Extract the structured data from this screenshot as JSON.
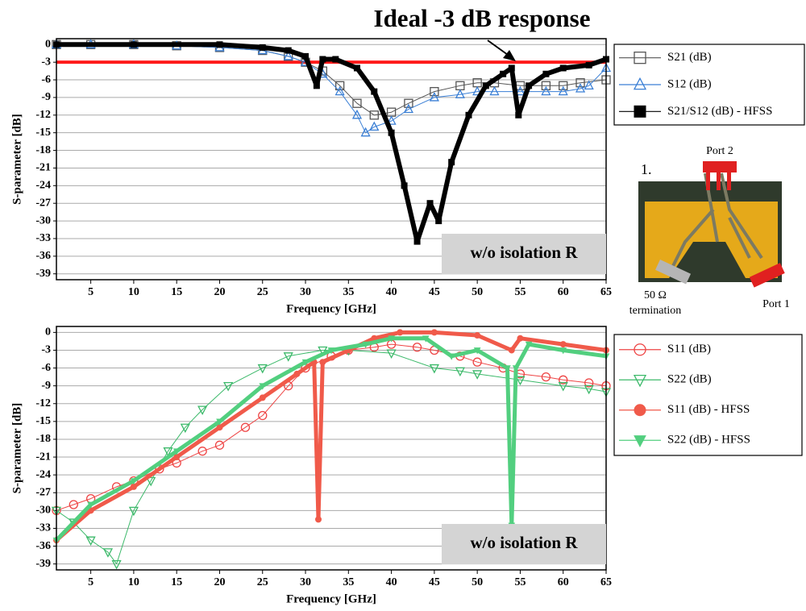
{
  "chart_data": [
    {
      "type": "line",
      "annotation": "Ideal -3 dB response",
      "label_box": "w/o isolation R",
      "x_label": "Frequency [GHz]",
      "y_label": "S-parameter [dB]",
      "xlim": [
        1,
        65
      ],
      "ylim": [
        -40,
        1
      ],
      "xticks": [
        5,
        10,
        15,
        20,
        25,
        30,
        35,
        40,
        45,
        50,
        55,
        60,
        65
      ],
      "yticks": [
        0,
        -3,
        -6,
        -9,
        -12,
        -15,
        -18,
        -21,
        -24,
        -27,
        -30,
        -33,
        -36,
        -39
      ],
      "grid": true,
      "hline": {
        "value": -3,
        "color": "#ff1a1a"
      },
      "series": [
        {
          "name": "S21 (dB)",
          "color": "#555555",
          "marker": "square-open",
          "line_width": 1,
          "x": [
            1,
            5,
            10,
            15,
            20,
            25,
            28,
            30,
            32,
            34,
            36,
            38,
            40,
            42,
            45,
            48,
            50,
            52,
            55,
            58,
            60,
            62,
            65
          ],
          "values": [
            0,
            0,
            0,
            -0.2,
            -0.5,
            -1,
            -2,
            -3,
            -4.5,
            -7,
            -10,
            -12,
            -11.5,
            -10,
            -8,
            -7,
            -6.5,
            -6.5,
            -7,
            -7,
            -7,
            -6.5,
            -6
          ]
        },
        {
          "name": "S12 (dB)",
          "color": "#3a7fd5",
          "marker": "triangle-open",
          "line_width": 1,
          "x": [
            1,
            5,
            10,
            15,
            20,
            25,
            28,
            30,
            32,
            34,
            36,
            37,
            38,
            40,
            42,
            45,
            48,
            50,
            52,
            55,
            58,
            60,
            62,
            63,
            65
          ],
          "values": [
            0,
            0,
            0,
            -0.2,
            -0.5,
            -1,
            -2,
            -3,
            -5,
            -8,
            -12,
            -15,
            -14,
            -13,
            -11,
            -9,
            -8.5,
            -8,
            -8,
            -8,
            -8,
            -8,
            -7.5,
            -7,
            -4
          ]
        },
        {
          "name": "S21/S12 (dB) - HFSS",
          "color": "#000000",
          "marker": "square-filled",
          "line_width": 6,
          "x": [
            1,
            10,
            20,
            25,
            28,
            30,
            31.3,
            32,
            33.5,
            36,
            38,
            40,
            41.5,
            43,
            44.5,
            45.5,
            47,
            49,
            51,
            53,
            54,
            54.8,
            56,
            58,
            60,
            63,
            65
          ],
          "values": [
            0,
            0,
            0,
            -0.5,
            -1,
            -2,
            -7,
            -2.5,
            -2.5,
            -4,
            -8,
            -15,
            -24,
            -33.5,
            -27,
            -30,
            -20,
            -12,
            -7,
            -5,
            -4,
            -12,
            -7,
            -5,
            -4,
            -3.5,
            -2.5
          ]
        }
      ]
    },
    {
      "type": "line",
      "label_box": "w/o isolation R",
      "x_label": "Frequency [GHz]",
      "y_label": "S-parameter [dB]",
      "xlim": [
        1,
        65
      ],
      "ylim": [
        -40,
        1
      ],
      "xticks": [
        5,
        10,
        15,
        20,
        25,
        30,
        35,
        40,
        45,
        50,
        55,
        60,
        65
      ],
      "yticks": [
        0,
        -3,
        -6,
        -9,
        -12,
        -15,
        -18,
        -21,
        -24,
        -27,
        -30,
        -33,
        -36,
        -39
      ],
      "grid": true,
      "series": [
        {
          "name": "S11 (dB)",
          "color": "#ee4444",
          "marker": "circle-open",
          "line_width": 1,
          "x": [
            1,
            3,
            5,
            8,
            10,
            13,
            15,
            18,
            20,
            23,
            25,
            28,
            30,
            33,
            35,
            38,
            40,
            43,
            45,
            48,
            50,
            53,
            55,
            58,
            60,
            63,
            65
          ],
          "values": [
            -30,
            -29,
            -28,
            -26,
            -25,
            -23,
            -22,
            -20,
            -19,
            -16,
            -14,
            -9,
            -6,
            -4,
            -3,
            -2.5,
            -2,
            -2.5,
            -3,
            -4,
            -5,
            -6,
            -7,
            -7.5,
            -8,
            -8.5,
            -9
          ]
        },
        {
          "name": "S22 (dB)",
          "color": "#3cb96a",
          "marker": "triangle-down-open",
          "line_width": 1,
          "x": [
            1,
            3,
            5,
            7,
            8,
            10,
            12,
            14,
            16,
            18,
            21,
            25,
            28,
            32,
            35,
            40,
            45,
            48,
            50,
            55,
            60,
            63,
            65
          ],
          "values": [
            -30,
            -32,
            -35,
            -37,
            -39,
            -30,
            -25,
            -20,
            -16,
            -13,
            -9,
            -6,
            -4,
            -3,
            -3,
            -3.5,
            -6,
            -6.5,
            -7,
            -8,
            -9,
            -9.5,
            -10
          ]
        },
        {
          "name": "S11 (dB) - HFSS",
          "color": "#f05a4a",
          "marker": "circle-filled",
          "line_width": 5,
          "x": [
            1,
            5,
            10,
            15,
            20,
            25,
            29,
            31,
            31.5,
            32,
            35,
            38,
            41,
            45,
            50,
            54,
            55,
            60,
            65
          ],
          "values": [
            -35,
            -30,
            -26,
            -21,
            -16,
            -11,
            -7,
            -5,
            -31.5,
            -5,
            -3,
            -1,
            0,
            0,
            -0.5,
            -3,
            -1,
            -2,
            -3
          ]
        },
        {
          "name": "S22 (dB) - HFSS",
          "color": "#52cf7f",
          "marker": "triangle-down-filled",
          "line_width": 5,
          "x": [
            1,
            5,
            10,
            15,
            20,
            25,
            30,
            33,
            37,
            40,
            44,
            47,
            50,
            53.5,
            54,
            54.5,
            56,
            60,
            65
          ],
          "values": [
            -35,
            -29,
            -25,
            -20,
            -15,
            -9,
            -5,
            -3,
            -2,
            -1,
            -1,
            -4,
            -3,
            -6,
            -32.5,
            -6,
            -2,
            -3,
            -4
          ]
        }
      ]
    }
  ],
  "inset": {
    "label": "1.",
    "port2": "Port 2",
    "port1": "Port 1",
    "termination_value": "50 Ω",
    "termination": "termination"
  }
}
